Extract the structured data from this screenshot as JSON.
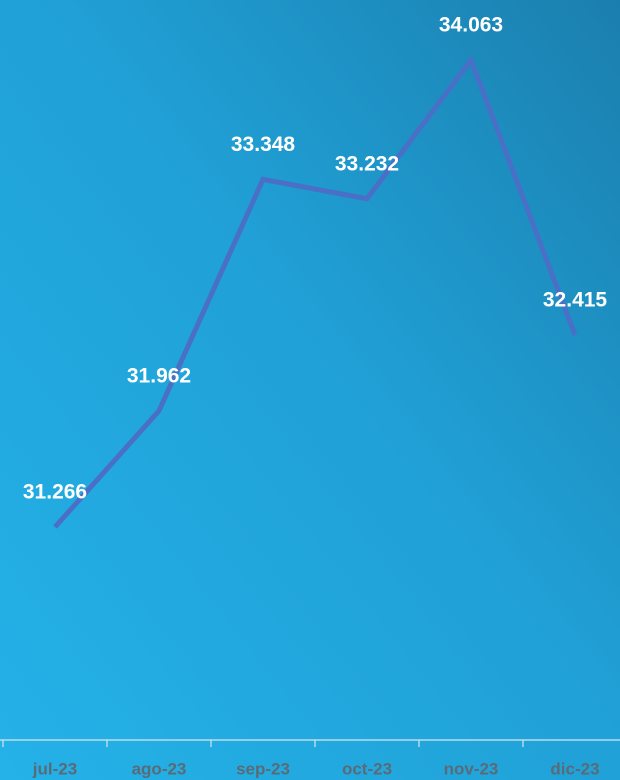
{
  "chart_data": {
    "type": "line",
    "categories": [
      "jul-23",
      "ago-23",
      "sep-23",
      "oct-23",
      "nov-23",
      "dic-23"
    ],
    "values": [
      31.266,
      31.962,
      33.348,
      33.232,
      34.063,
      32.415
    ],
    "color": "#4a6fc7"
  }
}
